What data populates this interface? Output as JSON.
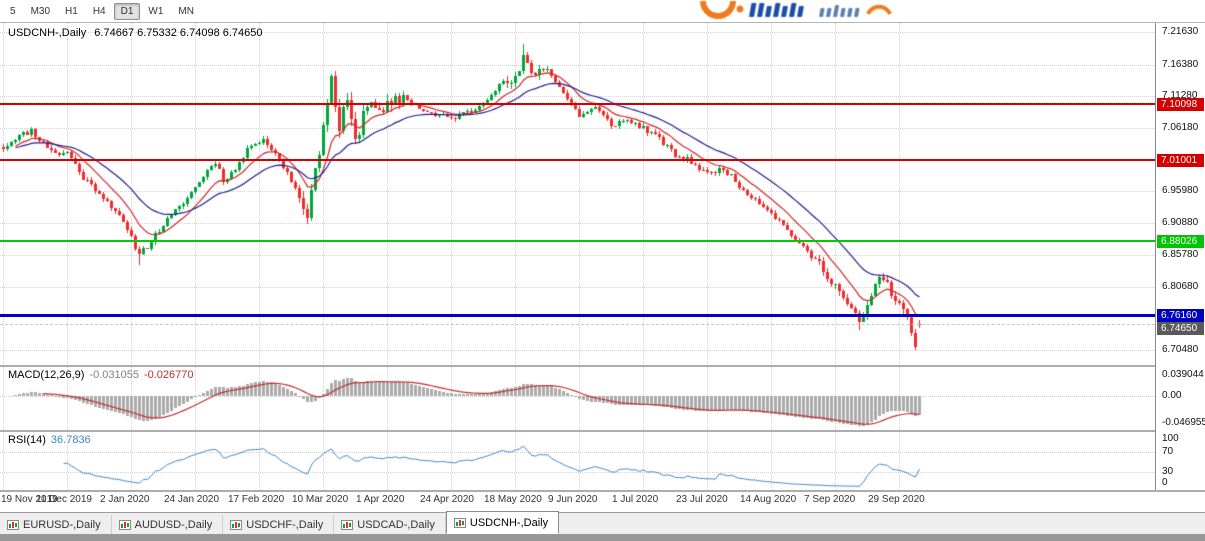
{
  "toolbar": {
    "timeframes": [
      "5",
      "M30",
      "H1",
      "H4",
      "D1",
      "W1",
      "MN"
    ],
    "active": "D1"
  },
  "chart": {
    "title": "USDCNH-,Daily",
    "ohlc_text": "6.74667 6.75332 6.74098 6.74650"
  },
  "price_axis": {
    "ticks": [
      {
        "label": "7.21630",
        "value": 7.2163
      },
      {
        "label": "7.16380",
        "value": 7.1638
      },
      {
        "label": "7.11280",
        "value": 7.1128
      },
      {
        "label": "7.06180",
        "value": 7.0618
      },
      {
        "label": "6.95980",
        "value": 6.9598
      },
      {
        "label": "6.90880",
        "value": 6.9088
      },
      {
        "label": "6.85780",
        "value": 6.8578
      },
      {
        "label": "6.80680",
        "value": 6.8068
      },
      {
        "label": "6.70480",
        "value": 6.7048
      }
    ],
    "badges": [
      {
        "label": "7.10098",
        "value": 7.10098,
        "bg": "#d40000",
        "fg": "#ffffff",
        "current": false
      },
      {
        "label": "7.01001",
        "value": 7.01001,
        "bg": "#d40000",
        "fg": "#ffffff",
        "current": false
      },
      {
        "label": "6.88026",
        "value": 6.88026,
        "bg": "#00c400",
        "fg": "#ffffff",
        "current": false
      },
      {
        "label": "6.76160",
        "value": 6.7616,
        "bg": "#0000c0",
        "fg": "#ffffff",
        "current": false
      },
      {
        "label": "6.74650",
        "value": 6.7465,
        "bg": "#5a5a5a",
        "fg": "#ffffff",
        "current": true
      }
    ]
  },
  "hlines": [
    {
      "value": 7.10098,
      "color": "#d40000",
      "width": 2
    },
    {
      "value": 7.01001,
      "color": "#d40000",
      "width": 2
    },
    {
      "value": 6.88026,
      "color": "#00cc00",
      "width": 2
    },
    {
      "value": 6.7616,
      "color": "#0000c0",
      "width": 3
    }
  ],
  "current_price_line": {
    "value": 6.7465
  },
  "macd": {
    "label": "MACD(12,26,9)",
    "value_main": "-0.031055",
    "value_signal": "-0.026770",
    "axis_ticks": [
      {
        "label": "0.039044",
        "value": 0.039
      },
      {
        "label": "0.00",
        "value": 0
      },
      {
        "label": "-0.046955",
        "value": -0.047
      }
    ]
  },
  "rsi": {
    "label": "RSI(14)",
    "value": "36.7836",
    "axis_ticks": [
      {
        "label": "100",
        "value": 100
      },
      {
        "label": "70",
        "value": 70
      },
      {
        "label": "30",
        "value": 30
      },
      {
        "label": "0",
        "value": 0
      }
    ],
    "levels": [
      70,
      30
    ]
  },
  "time_axis": {
    "labels": [
      "19 Nov 2019",
      "11 Dec 2019",
      "2 Jan 2020",
      "24 Jan 2020",
      "17 Feb 2020",
      "10 Mar 2020",
      "1 Apr 2020",
      "24 Apr 2020",
      "18 May 2020",
      "9 Jun 2020",
      "1 Jul 2020",
      "23 Jul 2020",
      "14 Aug 2020",
      "7 Sep 2020",
      "29 Sep 2020"
    ]
  },
  "tabs": {
    "items": [
      "EURUSD-,Daily",
      "AUDUSD-,Daily",
      "USDCHF-,Daily",
      "USDCAD-,Daily",
      "USDCNH-,Daily"
    ],
    "active_index": 4
  },
  "colors": {
    "up": "#00a63c",
    "down": "#f22c2c",
    "ma_fast": "#d02828",
    "ma_slow": "#202090",
    "macd_hist": "#ababab",
    "macd_signal": "#c03030",
    "rsi_line": "#3f86c6",
    "line_red": "#d40000",
    "line_green": "#00cc00",
    "line_blue": "#0000c0"
  },
  "chart_data": {
    "type": "candlestick",
    "symbol": "USDCNH",
    "timeframe": "Daily",
    "title": "USDCNH-,Daily",
    "last_bar": {
      "open": 6.74667,
      "high": 6.75332,
      "low": 6.74098,
      "close": 6.7465
    },
    "price_range": [
      6.7048,
      7.2163
    ],
    "n_bars": 230,
    "bars_per_x_label": 16,
    "x_labels": [
      "19 Nov 2019",
      "11 Dec 2019",
      "2 Jan 2020",
      "24 Jan 2020",
      "17 Feb 2020",
      "10 Mar 2020",
      "1 Apr 2020",
      "24 Apr 2020",
      "18 May 2020",
      "9 Jun 2020",
      "1 Jul 2020",
      "23 Jul 2020",
      "14 Aug 2020",
      "7 Sep 2020",
      "29 Sep 2020"
    ],
    "close_waypoints": [
      [
        0,
        7.03
      ],
      [
        3,
        7.046
      ],
      [
        7,
        7.058
      ],
      [
        10,
        7.036
      ],
      [
        14,
        7.018
      ],
      [
        16,
        7.024
      ],
      [
        20,
        6.982
      ],
      [
        24,
        6.958
      ],
      [
        28,
        6.93
      ],
      [
        31,
        6.896
      ],
      [
        34,
        6.86
      ],
      [
        36,
        6.872
      ],
      [
        40,
        6.906
      ],
      [
        44,
        6.934
      ],
      [
        48,
        6.966
      ],
      [
        51,
        6.994
      ],
      [
        53,
        7.008
      ],
      [
        55,
        6.978
      ],
      [
        58,
        6.996
      ],
      [
        62,
        7.036
      ],
      [
        65,
        7.044
      ],
      [
        68,
        7.02
      ],
      [
        71,
        6.99
      ],
      [
        74,
        6.952
      ],
      [
        76,
        6.928
      ],
      [
        78,
        6.986
      ],
      [
        80,
        7.072
      ],
      [
        82,
        7.138
      ],
      [
        84,
        7.062
      ],
      [
        86,
        7.106
      ],
      [
        88,
        7.036
      ],
      [
        90,
        7.086
      ],
      [
        92,
        7.112
      ],
      [
        94,
        7.082
      ],
      [
        96,
        7.094
      ],
      [
        100,
        7.112
      ],
      [
        104,
        7.094
      ],
      [
        108,
        7.082
      ],
      [
        112,
        7.078
      ],
      [
        118,
        7.092
      ],
      [
        124,
        7.132
      ],
      [
        128,
        7.138
      ],
      [
        130,
        7.172
      ],
      [
        132,
        7.152
      ],
      [
        136,
        7.158
      ],
      [
        139,
        7.128
      ],
      [
        144,
        7.082
      ],
      [
        148,
        7.094
      ],
      [
        152,
        7.068
      ],
      [
        156,
        7.074
      ],
      [
        160,
        7.062
      ],
      [
        164,
        7.044
      ],
      [
        168,
        7.018
      ],
      [
        172,
        7.008
      ],
      [
        176,
        6.988
      ],
      [
        180,
        6.998
      ],
      [
        184,
        6.968
      ],
      [
        188,
        6.948
      ],
      [
        192,
        6.926
      ],
      [
        196,
        6.898
      ],
      [
        200,
        6.868
      ],
      [
        204,
        6.844
      ],
      [
        208,
        6.808
      ],
      [
        212,
        6.768
      ],
      [
        214,
        6.748
      ],
      [
        217,
        6.788
      ],
      [
        219,
        6.828
      ],
      [
        222,
        6.798
      ],
      [
        224,
        6.778
      ],
      [
        226,
        6.752
      ],
      [
        228,
        6.716
      ],
      [
        229,
        6.7465
      ]
    ],
    "volatility_zones": [
      [
        74,
        100,
        2.6
      ],
      [
        126,
        134,
        1.9
      ],
      [
        204,
        229,
        1.6
      ]
    ],
    "extremes": {
      "34": {
        "low": 6.842
      },
      "130": {
        "high": 7.1965
      },
      "214": {
        "low": 6.737
      },
      "228": {
        "low": 6.7048
      }
    },
    "horizontal_levels": [
      7.10098,
      7.01001,
      6.88026,
      6.7616
    ],
    "indicators": {
      "macd": {
        "fast": 12,
        "slow": 26,
        "signal": 9,
        "current_main": -0.031055,
        "current_signal": -0.02677
      },
      "rsi": {
        "period": 14,
        "current": 36.7836,
        "levels": [
          30,
          70
        ]
      },
      "moving_averages": {
        "fast_period": 10,
        "fast_color": "red",
        "slow_period": 24,
        "slow_color": "navy"
      }
    }
  }
}
